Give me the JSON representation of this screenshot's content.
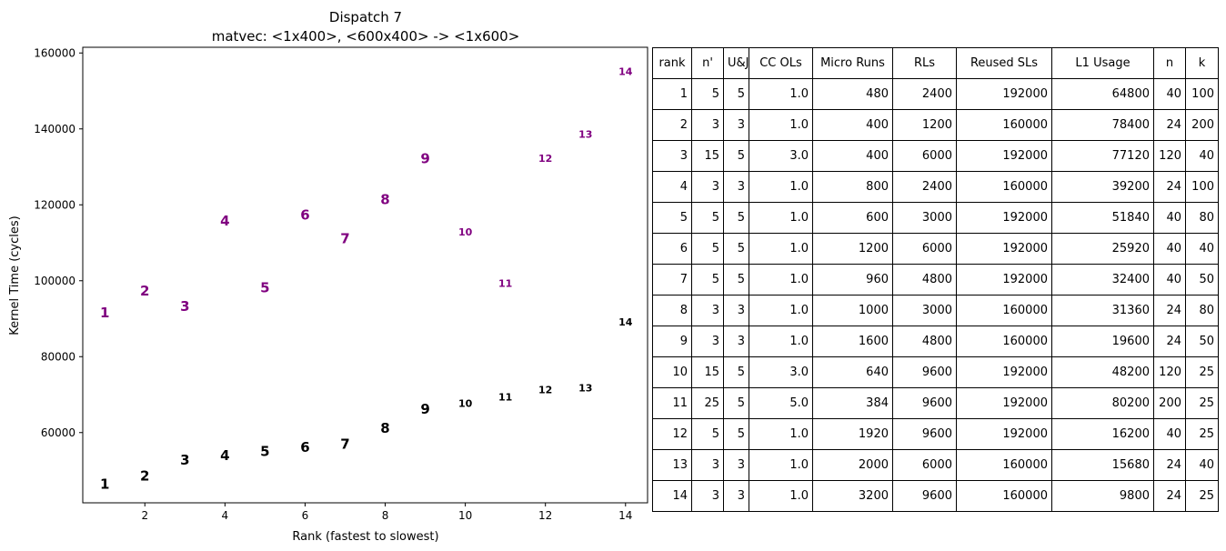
{
  "chart_data": {
    "type": "scatter",
    "title": "Dispatch 7",
    "subtitle": "matvec: <1x400>, <600x400> -> <1x600>",
    "xlabel": "Rank (fastest to slowest)",
    "ylabel": "Kernel Time (cycles)",
    "xlim": [
      0.45,
      14.55
    ],
    "ylim": [
      41500,
      161500
    ],
    "xticks": [
      2,
      4,
      6,
      8,
      10,
      12,
      14
    ],
    "yticks": [
      60000,
      80000,
      100000,
      120000,
      140000,
      160000
    ],
    "grid": false,
    "series": [
      {
        "color": "#000000",
        "points": [
          {
            "x": 1,
            "y": 46500,
            "label": "1"
          },
          {
            "x": 2,
            "y": 48700,
            "label": "2"
          },
          {
            "x": 3,
            "y": 52800,
            "label": "3"
          },
          {
            "x": 4,
            "y": 54100,
            "label": "4"
          },
          {
            "x": 5,
            "y": 55100,
            "label": "5"
          },
          {
            "x": 6,
            "y": 56200,
            "label": "6"
          },
          {
            "x": 7,
            "y": 57100,
            "label": "7"
          },
          {
            "x": 8,
            "y": 61200,
            "label": "8"
          },
          {
            "x": 9,
            "y": 66300,
            "label": "9"
          },
          {
            "x": 10,
            "y": 67700,
            "label": "10"
          },
          {
            "x": 11,
            "y": 69400,
            "label": "11"
          },
          {
            "x": 12,
            "y": 71300,
            "label": "12"
          },
          {
            "x": 13,
            "y": 71800,
            "label": "13"
          },
          {
            "x": 14,
            "y": 89100,
            "label": "14"
          }
        ]
      },
      {
        "color": "#800080",
        "points": [
          {
            "x": 1,
            "y": 91600,
            "label": "1"
          },
          {
            "x": 2,
            "y": 97400,
            "label": "2"
          },
          {
            "x": 3,
            "y": 93300,
            "label": "3"
          },
          {
            "x": 4,
            "y": 115800,
            "label": "4"
          },
          {
            "x": 5,
            "y": 98200,
            "label": "5"
          },
          {
            "x": 6,
            "y": 117400,
            "label": "6"
          },
          {
            "x": 7,
            "y": 111200,
            "label": "7"
          },
          {
            "x": 8,
            "y": 121500,
            "label": "8"
          },
          {
            "x": 9,
            "y": 132200,
            "label": "9"
          },
          {
            "x": 10,
            "y": 112900,
            "label": "10"
          },
          {
            "x": 11,
            "y": 99300,
            "label": "11"
          },
          {
            "x": 12,
            "y": 132300,
            "label": "12"
          },
          {
            "x": 13,
            "y": 138600,
            "label": "13"
          },
          {
            "x": 14,
            "y": 155200,
            "label": "14"
          }
        ]
      }
    ]
  },
  "table": {
    "headers": [
      "rank",
      "n'",
      "U&J",
      "CC OLs",
      "Micro Runs",
      "RLs",
      "Reused SLs",
      "L1 Usage",
      "n",
      "k"
    ],
    "rows": [
      [
        "1",
        "5",
        "5",
        "1.0",
        "480",
        "2400",
        "192000",
        "64800",
        "40",
        "100"
      ],
      [
        "2",
        "3",
        "3",
        "1.0",
        "400",
        "1200",
        "160000",
        "78400",
        "24",
        "200"
      ],
      [
        "3",
        "15",
        "5",
        "3.0",
        "400",
        "6000",
        "192000",
        "77120",
        "120",
        "40"
      ],
      [
        "4",
        "3",
        "3",
        "1.0",
        "800",
        "2400",
        "160000",
        "39200",
        "24",
        "100"
      ],
      [
        "5",
        "5",
        "5",
        "1.0",
        "600",
        "3000",
        "192000",
        "51840",
        "40",
        "80"
      ],
      [
        "6",
        "5",
        "5",
        "1.0",
        "1200",
        "6000",
        "192000",
        "25920",
        "40",
        "40"
      ],
      [
        "7",
        "5",
        "5",
        "1.0",
        "960",
        "4800",
        "192000",
        "32400",
        "40",
        "50"
      ],
      [
        "8",
        "3",
        "3",
        "1.0",
        "1000",
        "3000",
        "160000",
        "31360",
        "24",
        "80"
      ],
      [
        "9",
        "3",
        "3",
        "1.0",
        "1600",
        "4800",
        "160000",
        "19600",
        "24",
        "50"
      ],
      [
        "10",
        "15",
        "5",
        "3.0",
        "640",
        "9600",
        "192000",
        "48200",
        "120",
        "25"
      ],
      [
        "11",
        "25",
        "5",
        "5.0",
        "384",
        "9600",
        "192000",
        "80200",
        "200",
        "25"
      ],
      [
        "12",
        "5",
        "5",
        "1.0",
        "1920",
        "9600",
        "192000",
        "16200",
        "40",
        "25"
      ],
      [
        "13",
        "3",
        "3",
        "1.0",
        "2000",
        "6000",
        "160000",
        "15680",
        "24",
        "40"
      ],
      [
        "14",
        "3",
        "3",
        "1.0",
        "3200",
        "9600",
        "160000",
        "9800",
        "24",
        "25"
      ]
    ]
  }
}
